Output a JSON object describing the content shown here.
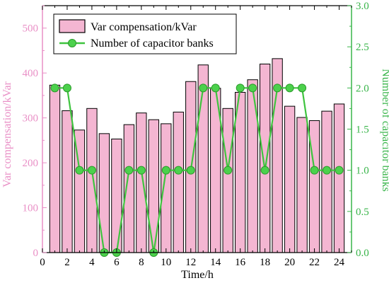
{
  "chart_data": {
    "type": "bar",
    "xlabel": "Time/h",
    "ylabel_left": "Var compensation/kVar",
    "ylabel_right": "Number of capacitor banks",
    "xlim": [
      0,
      25
    ],
    "x_ticks": [
      "0",
      "2",
      "4",
      "6",
      "8",
      "10",
      "12",
      "14",
      "16",
      "18",
      "20",
      "22",
      "24"
    ],
    "ylim_left": [
      0,
      550
    ],
    "y_ticks_left": [
      "0",
      "100",
      "200",
      "300",
      "400",
      "500"
    ],
    "ylim_right": [
      0,
      3.0
    ],
    "y_ticks_right": [
      "0.0",
      "0.5",
      "1.0",
      "1.5",
      "2.0",
      "2.5",
      "3.0"
    ],
    "x": [
      1,
      2,
      3,
      4,
      5,
      6,
      7,
      8,
      9,
      10,
      11,
      12,
      13,
      14,
      15,
      16,
      17,
      18,
      19,
      20,
      21,
      22,
      23,
      24
    ],
    "series": [
      {
        "name": "Var compensation/kVar",
        "type": "bar",
        "axis": "left",
        "color": "#f4b6d2",
        "edge_color": "#000000",
        "values": [
          373,
          316,
          273,
          321,
          265,
          253,
          285,
          311,
          296,
          287,
          313,
          381,
          418,
          366,
          321,
          357,
          385,
          420,
          432,
          326,
          301,
          294,
          315,
          331
        ]
      },
      {
        "name": "Number of capacitor banks",
        "type": "line",
        "axis": "right",
        "color": "#3fc43f",
        "marker": "circle",
        "values": [
          2,
          2,
          1,
          1,
          0,
          0,
          1,
          1,
          0,
          1,
          1,
          1,
          2,
          2,
          1,
          2,
          2,
          1,
          2,
          2,
          2,
          1,
          1,
          1
        ]
      }
    ],
    "left_axis_color": "#e98fc6",
    "right_axis_color": "#39b54a",
    "legend_position": "top-left",
    "grid": false
  }
}
